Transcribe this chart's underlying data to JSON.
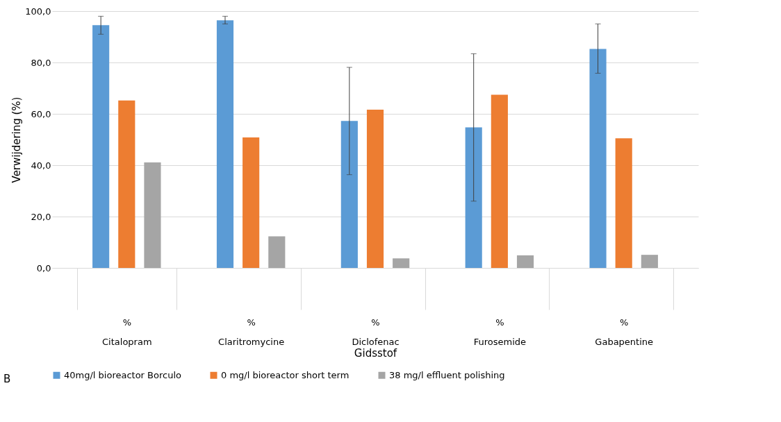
{
  "chart_data": {
    "type": "bar",
    "xlabel": "Gidsstof",
    "ylabel": "Verwijdering (%)",
    "categories": [
      "%\nCitalopram",
      "%\nClaritromycine",
      "%\nDiclofenac",
      "%\nFurosemide",
      "%\nGabapentine"
    ],
    "series": [
      {
        "name": "40mg/l bioreactor Borculo",
        "color": "#5b9bd5",
        "values": [
          94.5,
          96.4,
          57.2,
          54.7,
          85.3
        ],
        "errors": [
          [
            91.0,
            98.0
          ],
          [
            95.0,
            98.0
          ],
          [
            36.3,
            78.1
          ],
          [
            26.0,
            83.4
          ],
          [
            75.8,
            95.0
          ]
        ]
      },
      {
        "name": "0 mg/l bioreactor short term",
        "color": "#ed7d31",
        "values": [
          65.2,
          50.8,
          61.6,
          67.4,
          50.5
        ]
      },
      {
        "name": "38 mg/l effluent polishing",
        "color": "#a5a5a5",
        "values": [
          41.1,
          12.3,
          3.7,
          4.9,
          5.1
        ]
      }
    ],
    "ylim": [
      0,
      100
    ],
    "yticks": [
      {
        "value": 0,
        "label": "0,0"
      },
      {
        "value": 20,
        "label": "20,0"
      },
      {
        "value": 40,
        "label": "40,0"
      },
      {
        "value": 60,
        "label": "60,0"
      },
      {
        "value": 80,
        "label": "80,0"
      },
      {
        "value": 100,
        "label": "100,0"
      }
    ],
    "grid": "y",
    "legend": "bottom",
    "annotations": [
      "B"
    ]
  }
}
